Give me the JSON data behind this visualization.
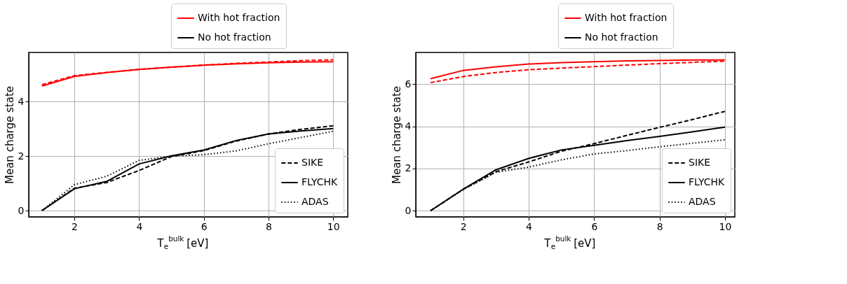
{
  "chart_data": [
    {
      "type": "line",
      "xlabel": "T$_{e}$$^{bulk}$ [eV]",
      "ylabel": "Mean charge state",
      "x": [
        1,
        2,
        3,
        4,
        5,
        6,
        7,
        8,
        9,
        10
      ],
      "xlim": [
        0.59,
        10.45
      ],
      "xticks": [
        2,
        4,
        6,
        8,
        10
      ],
      "ylim": [
        -0.23,
        5.8
      ],
      "yticks": [
        0,
        2,
        4
      ],
      "grid": true,
      "legend": "bottom right",
      "marker": "none",
      "annotations": [
        "With hot fraction",
        "No hot fraction"
      ],
      "series": [
        {
          "color": "#ff0000",
          "line_style": "dashed",
          "values": [
            4.62,
            4.95,
            5.07,
            5.18,
            5.26,
            5.34,
            5.4,
            5.45,
            5.5,
            5.53
          ]
        },
        {
          "color": "#ff0000",
          "line_style": "solid",
          "values": [
            4.57,
            4.92,
            5.06,
            5.18,
            5.26,
            5.33,
            5.38,
            5.42,
            5.45,
            5.46
          ]
        },
        {
          "name": "SIKE",
          "color": "#000000",
          "line_style": "dashed",
          "values": [
            0,
            0.82,
            1.03,
            1.47,
            1.98,
            2.2,
            2.55,
            2.81,
            2.98,
            3.11
          ]
        },
        {
          "name": "FLYCHK",
          "color": "#000000",
          "line_style": "solid",
          "values": [
            0,
            0.8,
            1.07,
            1.71,
            2.01,
            2.22,
            2.57,
            2.81,
            2.92,
            3.01
          ]
        },
        {
          "name": "ADAS",
          "color": "#000000",
          "line_style": "dotted",
          "values": [
            0,
            0.95,
            1.26,
            1.84,
            2.0,
            2.05,
            2.19,
            2.45,
            2.68,
            2.91
          ]
        }
      ]
    },
    {
      "type": "line",
      "xlabel": "T$_{e}$$^{bulk}$ [eV]",
      "ylabel": "Mean charge state",
      "x": [
        1,
        2,
        3,
        4,
        5,
        6,
        7,
        8,
        9,
        10
      ],
      "xlim": [
        0.55,
        10.3
      ],
      "xticks": [
        2,
        4,
        6,
        8,
        10
      ],
      "ylim": [
        -0.29,
        7.5
      ],
      "yticks": [
        0,
        2,
        4,
        6
      ],
      "grid": true,
      "legend": "bottom right",
      "marker": "none",
      "annotations": [
        "With hot fraction",
        "No hot fraction"
      ],
      "series": [
        {
          "color": "#ff0000",
          "line_style": "dashed",
          "values": [
            6.07,
            6.36,
            6.55,
            6.68,
            6.76,
            6.83,
            6.9,
            6.97,
            7.03,
            7.09
          ]
        },
        {
          "color": "#ff0000",
          "line_style": "solid",
          "values": [
            6.26,
            6.65,
            6.82,
            6.95,
            7.02,
            7.06,
            7.1,
            7.12,
            7.14,
            7.14
          ]
        },
        {
          "name": "SIKE",
          "color": "#000000",
          "line_style": "dashed",
          "values": [
            0,
            1.02,
            1.85,
            2.31,
            2.82,
            3.18,
            3.57,
            3.95,
            4.32,
            4.71
          ]
        },
        {
          "name": "FLYCHK",
          "color": "#000000",
          "line_style": "solid",
          "values": [
            0,
            1.02,
            1.94,
            2.48,
            2.88,
            3.1,
            3.32,
            3.52,
            3.74,
            3.96
          ]
        },
        {
          "name": "ADAS",
          "color": "#000000",
          "line_style": "dotted",
          "values": [
            0,
            1.0,
            1.82,
            2.07,
            2.41,
            2.69,
            2.85,
            3.03,
            3.2,
            3.36
          ]
        }
      ]
    }
  ]
}
